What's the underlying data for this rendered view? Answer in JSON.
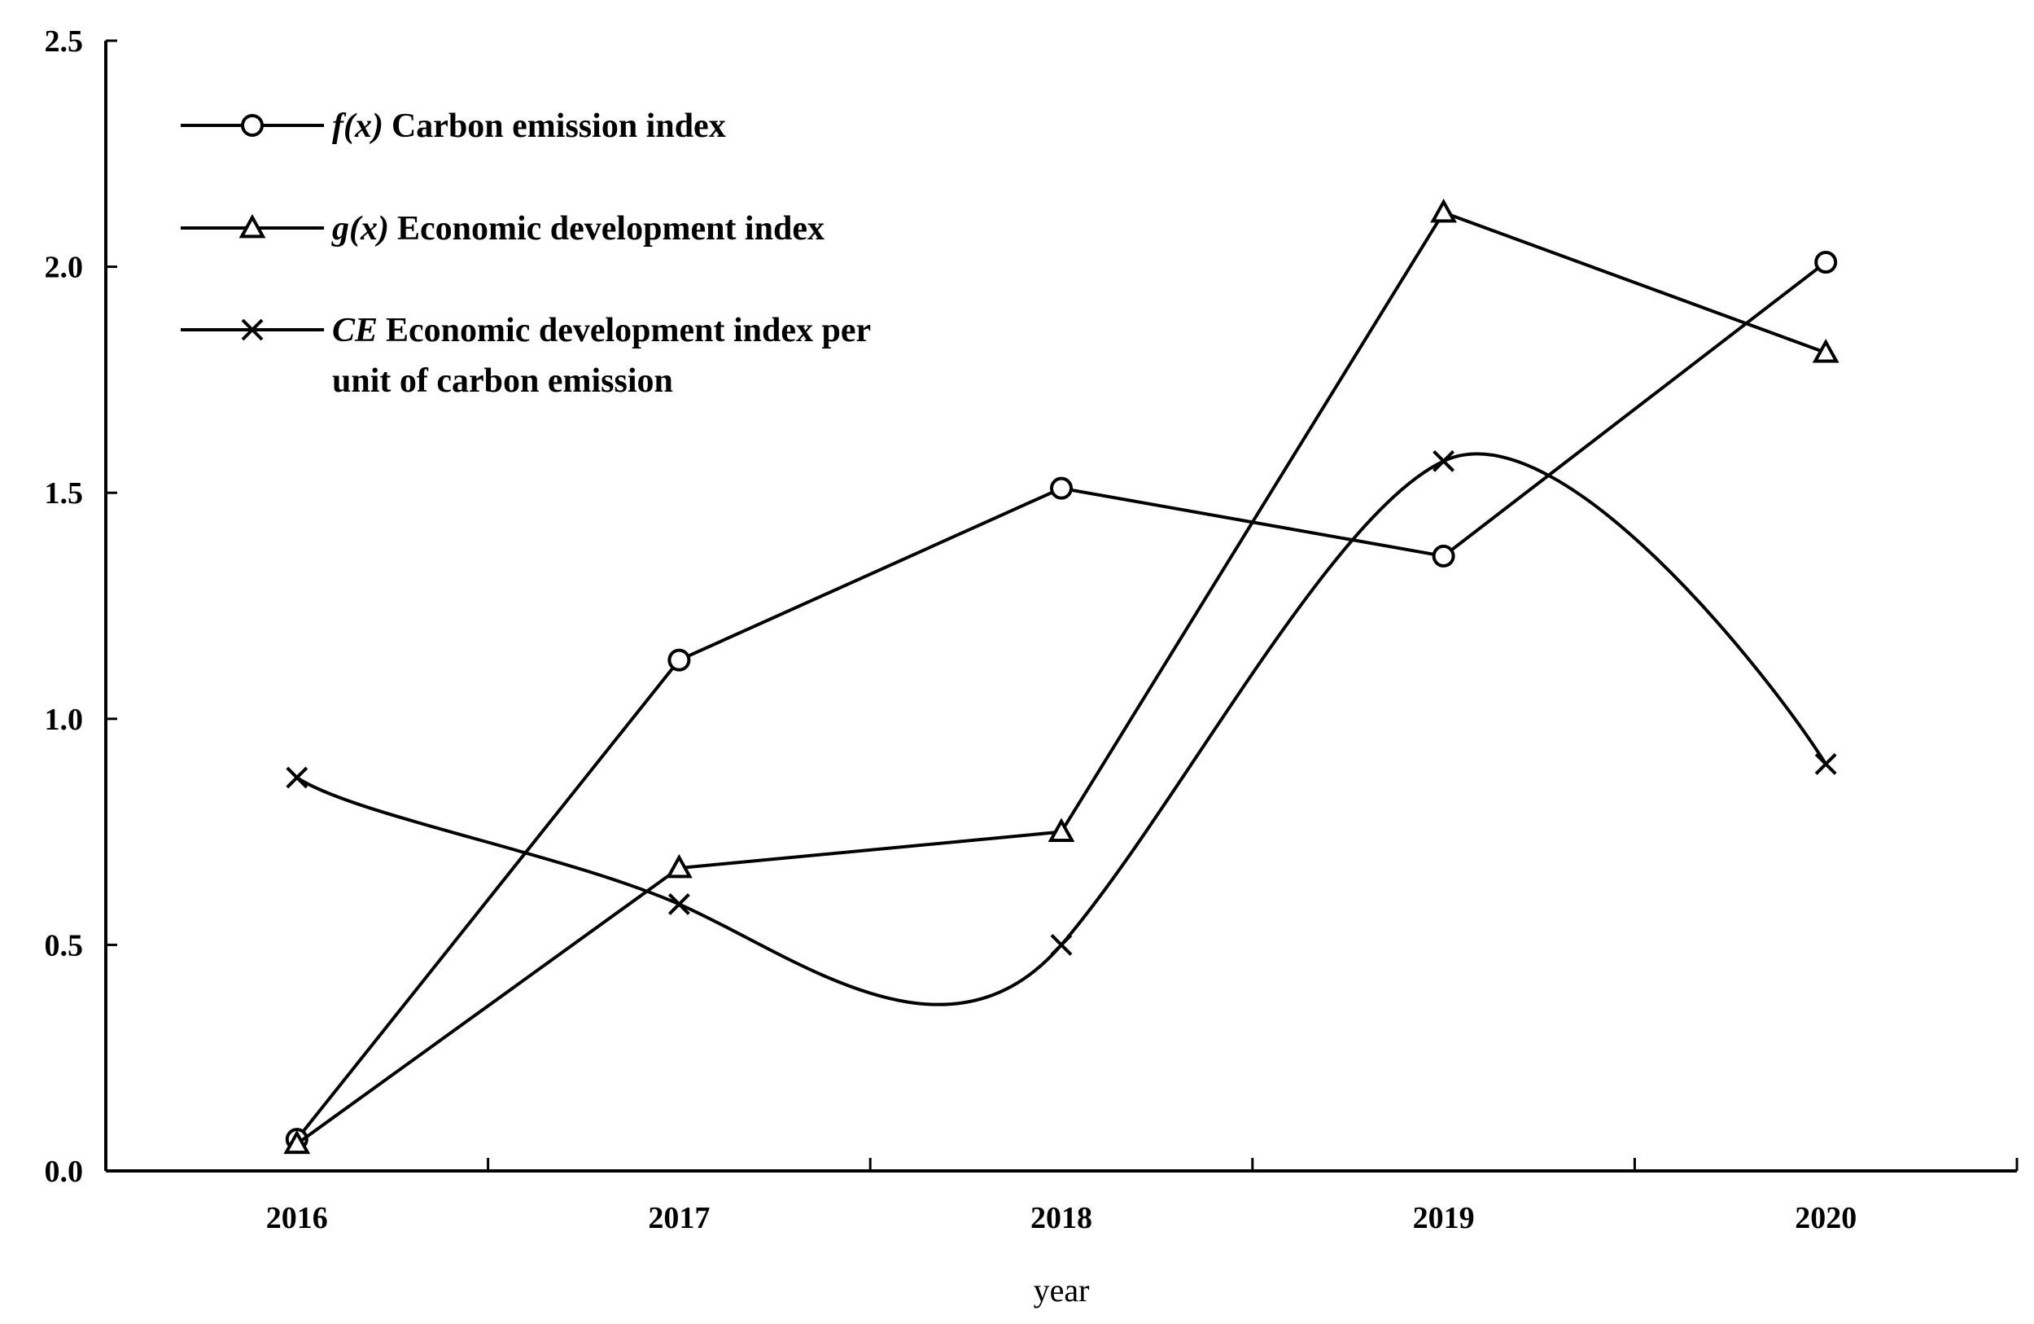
{
  "chart_data": {
    "type": "line",
    "xlabel": "year",
    "ylabel": "",
    "x": [
      "2016",
      "2017",
      "2018",
      "2019",
      "2020"
    ],
    "ylim": [
      0,
      2.5
    ],
    "y_ticks": [
      "0.0",
      "0.5",
      "1.0",
      "1.5",
      "2.0",
      "2.5"
    ],
    "grid": false,
    "legend_position": "top-left",
    "series": [
      {
        "symbol": "f(x)",
        "name": "Carbon emission index",
        "marker": "circle",
        "smooth": false,
        "values": [
          0.07,
          1.13,
          1.51,
          1.36,
          2.01
        ]
      },
      {
        "symbol": "g(x)",
        "name": "Economic development index",
        "marker": "triangle",
        "smooth": false,
        "values": [
          0.06,
          0.67,
          0.75,
          2.12,
          1.81
        ]
      },
      {
        "symbol": "CE",
        "name": "Economic development index per",
        "name_line2": "unit of carbon emission",
        "marker": "x",
        "smooth": true,
        "values": [
          0.87,
          0.59,
          0.5,
          1.57,
          0.9
        ]
      }
    ]
  }
}
